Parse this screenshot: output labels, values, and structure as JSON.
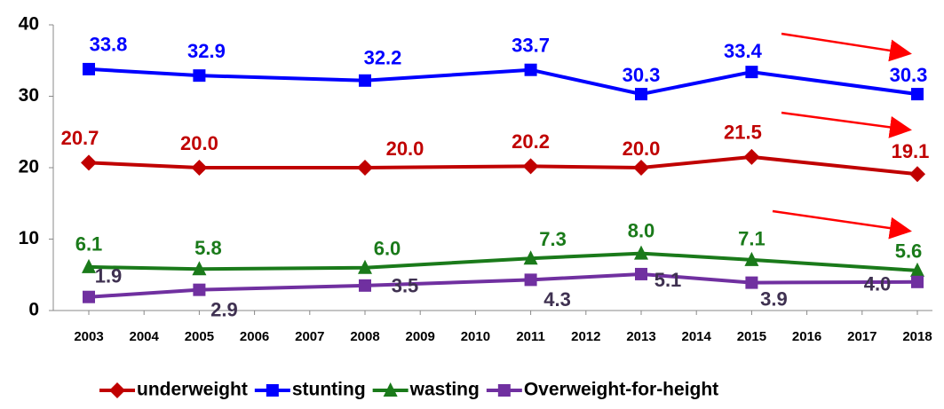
{
  "chart_data": {
    "type": "line",
    "x": [
      2003,
      2005,
      2008,
      2011,
      2013,
      2015,
      2018
    ],
    "xlim": [
      2003,
      2018
    ],
    "xticks": [
      2003,
      2004,
      2005,
      2006,
      2007,
      2008,
      2009,
      2010,
      2011,
      2012,
      2013,
      2014,
      2015,
      2016,
      2017,
      2018
    ],
    "ylim": [
      0,
      40
    ],
    "yticks": [
      0,
      10,
      20,
      30,
      40
    ],
    "grid": false,
    "legend": "bottom",
    "series": [
      {
        "name": "underweight",
        "color": "#c00000",
        "marker": "diamond",
        "values": [
          20.7,
          20.0,
          20.0,
          20.2,
          20.0,
          21.5,
          19.1
        ],
        "value_labels": [
          "20.7",
          "20.0",
          "20.0",
          "20.2",
          "20.0",
          "21.5",
          "19.1"
        ]
      },
      {
        "name": "stunting",
        "color": "#0000ff",
        "marker": "square",
        "values": [
          33.8,
          32.9,
          32.2,
          33.7,
          30.3,
          33.4,
          30.3
        ],
        "value_labels": [
          "33.8",
          "32.9",
          "32.2",
          "33.7",
          "30.3",
          "33.4",
          "30.3"
        ]
      },
      {
        "name": "wasting",
        "color": "#1a7a1a",
        "marker": "triangle",
        "values": [
          6.1,
          5.8,
          6.0,
          7.3,
          8.0,
          7.1,
          5.6
        ],
        "value_labels": [
          "6.1",
          "5.8",
          "6.0",
          "7.3",
          "8.0",
          "7.1",
          "5.6"
        ]
      },
      {
        "name": "Overweight-for-height",
        "color": "#7030a0",
        "marker": "square",
        "values": [
          1.9,
          2.9,
          3.5,
          4.3,
          5.1,
          3.9,
          4.0
        ],
        "value_labels": [
          "1.9",
          "2.9",
          "3.5",
          "4.3",
          "5.1",
          "3.9",
          "4.0"
        ]
      }
    ]
  }
}
